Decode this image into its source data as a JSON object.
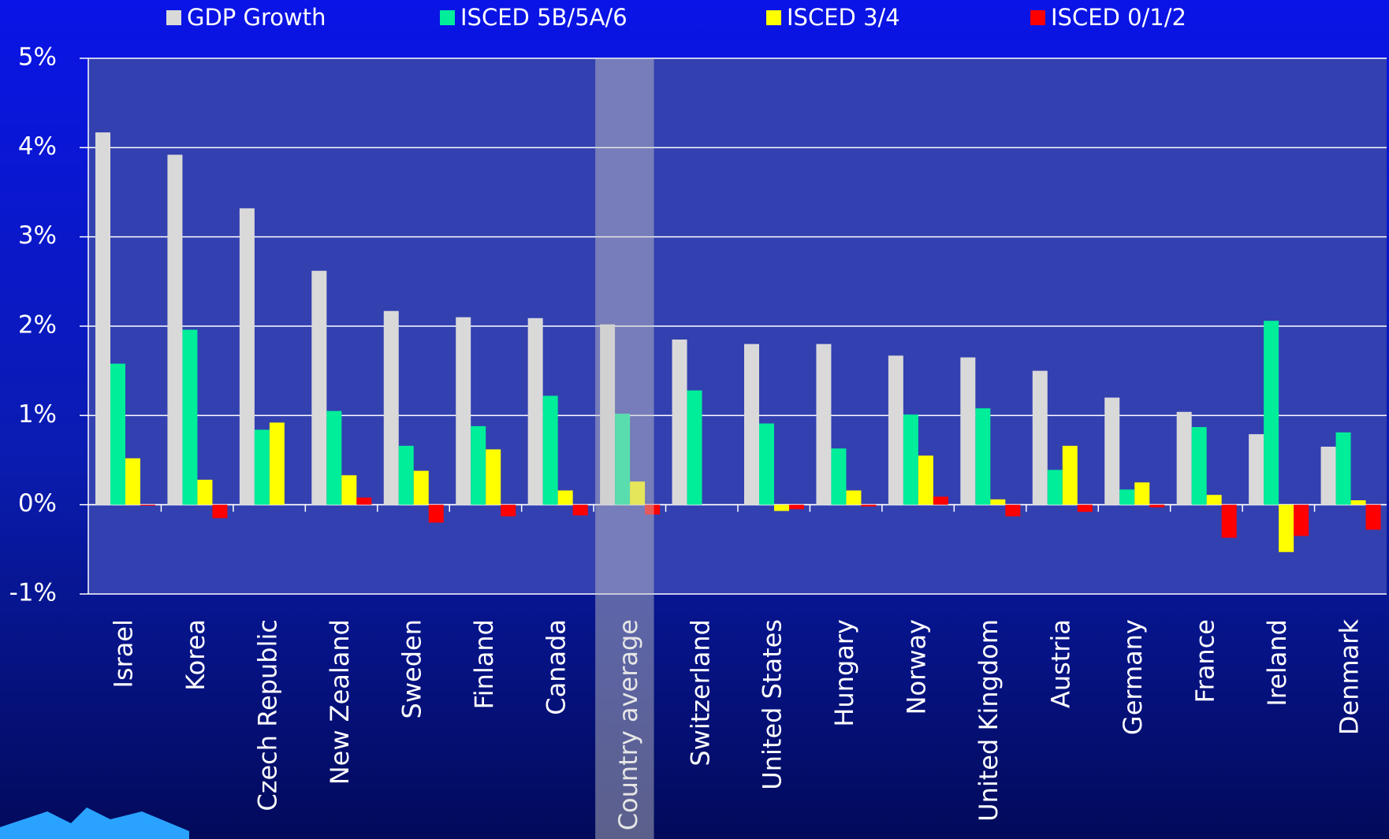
{
  "chart_data": {
    "type": "bar",
    "categories": [
      "Israel",
      "Korea",
      "Czech Republic",
      "New Zealand",
      "Sweden",
      "Finland",
      "Canada",
      "Country average",
      "Switzerland",
      "United States",
      "Hungary",
      "Norway",
      "United Kingdom",
      "Austria",
      "Germany",
      "France",
      "Ireland",
      "Denmark"
    ],
    "series": [
      {
        "name": "GDP Growth",
        "color": "#d9d9d9",
        "values": [
          4.17,
          3.92,
          3.32,
          2.62,
          2.17,
          2.1,
          2.09,
          2.02,
          1.85,
          1.8,
          1.8,
          1.67,
          1.65,
          1.5,
          1.2,
          1.04,
          0.79,
          0.65
        ]
      },
      {
        "name": "ISCED 5B/5A/6",
        "color": "#00ee99",
        "values": [
          1.58,
          1.96,
          0.84,
          1.05,
          0.66,
          0.88,
          1.22,
          1.02,
          1.28,
          0.91,
          0.63,
          1.01,
          1.08,
          0.39,
          0.17,
          0.87,
          2.06,
          0.81
        ]
      },
      {
        "name": "ISCED 3/4",
        "color": "#ffff00",
        "values": [
          0.52,
          0.28,
          0.92,
          0.33,
          0.38,
          0.62,
          0.16,
          0.26,
          null,
          -0.07,
          0.16,
          0.55,
          0.06,
          0.66,
          0.25,
          0.11,
          -0.53,
          0.05
        ]
      },
      {
        "name": "ISCED 0/1/2",
        "color": "#ff0000",
        "values": [
          -0.01,
          -0.15,
          0,
          0.08,
          -0.2,
          -0.13,
          -0.12,
          -0.11,
          null,
          -0.05,
          -0.02,
          0.09,
          -0.13,
          -0.08,
          -0.03,
          -0.37,
          -0.35,
          -0.28
        ]
      }
    ],
    "ylim": [
      -1,
      5
    ],
    "yticks": [
      {
        "value": -1,
        "label": "-1%"
      },
      {
        "value": 0,
        "label": "0%"
      },
      {
        "value": 1,
        "label": "1%"
      },
      {
        "value": 2,
        "label": "2%"
      },
      {
        "value": 3,
        "label": "3%"
      },
      {
        "value": 4,
        "label": "4%"
      },
      {
        "value": 5,
        "label": "5%"
      }
    ],
    "grid": true,
    "highlight": [
      7
    ]
  }
}
